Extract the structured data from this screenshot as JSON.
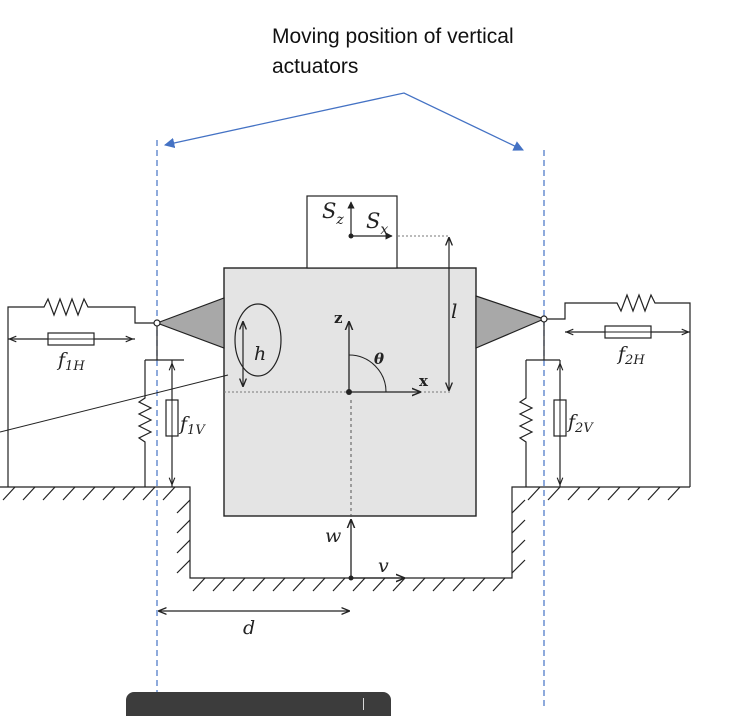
{
  "caption": "Moving position of vertical actuators",
  "labels": {
    "sz": "S",
    "sz_sub": "z",
    "sx": "S",
    "sx_sub": "x",
    "l": "l",
    "h": "h",
    "z": "z",
    "x": "x",
    "theta": "θ",
    "w": "w",
    "v": "v",
    "d": "d",
    "f1h": "f",
    "f1h_sub": "1H",
    "f2h": "f",
    "f2h_sub": "2H",
    "f1v": "f",
    "f1v_sub": "1V",
    "f2v": "f",
    "f2v_sub": "2V"
  },
  "colors": {
    "annotation": "#4472c4",
    "body_fill": "#e4e4e4",
    "line": "#222222"
  }
}
